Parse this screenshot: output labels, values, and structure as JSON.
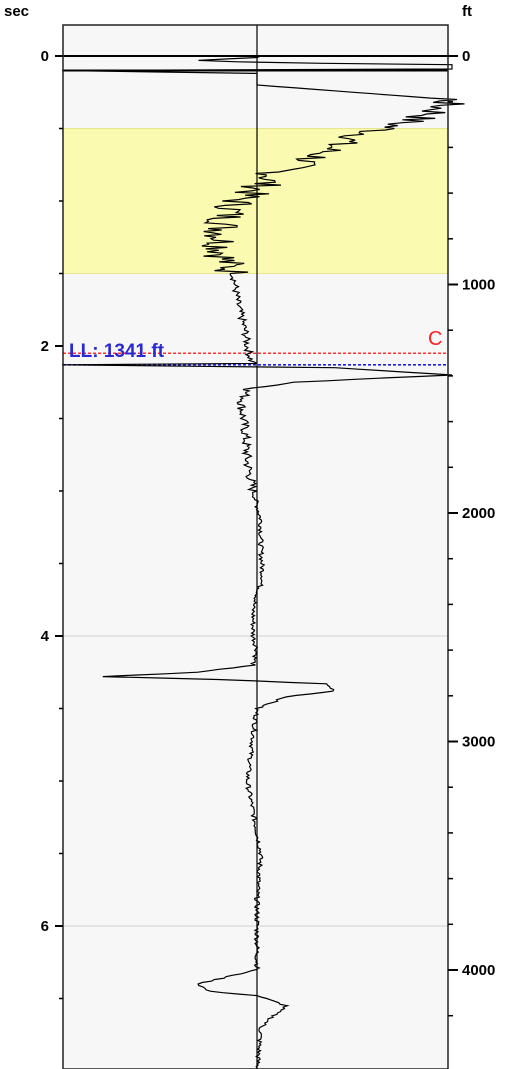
{
  "chart_data": {
    "type": "line",
    "left_axis": {
      "label": "sec",
      "range": [
        -0.15,
        7.1
      ],
      "major_ticks": [
        0,
        2,
        4,
        6
      ],
      "minor_ticks": [
        0.5,
        1,
        1.5,
        2.5,
        3,
        3.5,
        4.5,
        5,
        5.5,
        6.5
      ],
      "gridlines": [
        4,
        6
      ]
    },
    "right_axis": {
      "label": "ft",
      "labeled_ticks": [
        0,
        1000,
        2000,
        3000,
        4000
      ],
      "minor_ticks": [
        200,
        400,
        600,
        800,
        1200,
        1400,
        1600,
        1800,
        2200,
        2400,
        2600,
        2800,
        3200,
        3400,
        3600,
        3800,
        4200
      ]
    },
    "highlight_band": {
      "from": 0.5,
      "to": 1.5,
      "color": "#fafab0"
    },
    "lines": {
      "top_line_1": 0.0,
      "top_line_2": 0.1,
      "red_line": 2.05,
      "red_color": "#ff3030",
      "blue_line": 2.13,
      "blue_color": "#2020e0"
    },
    "ll_label": "LL: 1341 ft",
    "c_label": "C",
    "series": [
      {
        "amplitude_scale": 195,
        "points": [
          [
            0,
            0.02
          ],
          [
            0.01,
            0.0
          ],
          [
            0.03,
            -0.3
          ],
          [
            0.045,
            0.0
          ],
          [
            0.06,
            1.0
          ],
          [
            0.09,
            1.0
          ],
          [
            0.1,
            -1.0
          ],
          [
            0.12,
            0.0
          ],
          [
            0.2,
            0.0
          ],
          [
            0.3,
            0.99
          ],
          [
            0.4,
            0.9
          ],
          [
            0.5,
            0.65
          ],
          [
            0.6,
            0.42
          ],
          [
            0.7,
            0.3
          ],
          [
            0.8,
            0.1
          ],
          [
            0.9,
            0.02
          ],
          [
            1.0,
            -0.1
          ],
          [
            1.1,
            -0.15
          ],
          [
            1.2,
            -0.18
          ],
          [
            1.3,
            -0.18
          ],
          [
            1.4,
            -0.17
          ],
          [
            1.5,
            -0.12
          ],
          [
            1.7,
            -0.1
          ],
          [
            1.9,
            -0.06
          ],
          [
            2.0,
            -0.05
          ],
          [
            2.1,
            -0.03
          ],
          [
            2.12,
            0.0
          ],
          [
            2.13,
            -1.0
          ],
          [
            2.15,
            0.4
          ],
          [
            2.2,
            1.0
          ],
          [
            2.25,
            0.2
          ],
          [
            2.3,
            -0.05
          ],
          [
            2.4,
            -0.08
          ],
          [
            2.6,
            -0.06
          ],
          [
            2.8,
            -0.05
          ],
          [
            3.0,
            -0.02
          ],
          [
            3.2,
            0.02
          ],
          [
            3.4,
            0.02
          ],
          [
            3.6,
            0.03
          ],
          [
            3.8,
            -0.02
          ],
          [
            4.0,
            -0.02
          ],
          [
            4.1,
            0.0
          ],
          [
            4.2,
            -0.02
          ],
          [
            4.25,
            -0.3
          ],
          [
            4.28,
            -0.8
          ],
          [
            4.3,
            -0.2
          ],
          [
            4.33,
            0.35
          ],
          [
            4.38,
            0.4
          ],
          [
            4.42,
            0.15
          ],
          [
            4.5,
            0.0
          ],
          [
            4.7,
            -0.02
          ],
          [
            5.0,
            -0.05
          ],
          [
            5.5,
            0.02
          ],
          [
            5.8,
            0.0
          ],
          [
            6.0,
            0.0
          ],
          [
            6.3,
            0.0
          ],
          [
            6.4,
            -0.3
          ],
          [
            6.45,
            -0.25
          ],
          [
            6.48,
            0.0
          ],
          [
            6.55,
            0.15
          ],
          [
            6.6,
            0.1
          ],
          [
            6.7,
            0.02
          ],
          [
            7.0,
            0.0
          ],
          [
            7.1,
            0.0
          ]
        ]
      }
    ]
  }
}
